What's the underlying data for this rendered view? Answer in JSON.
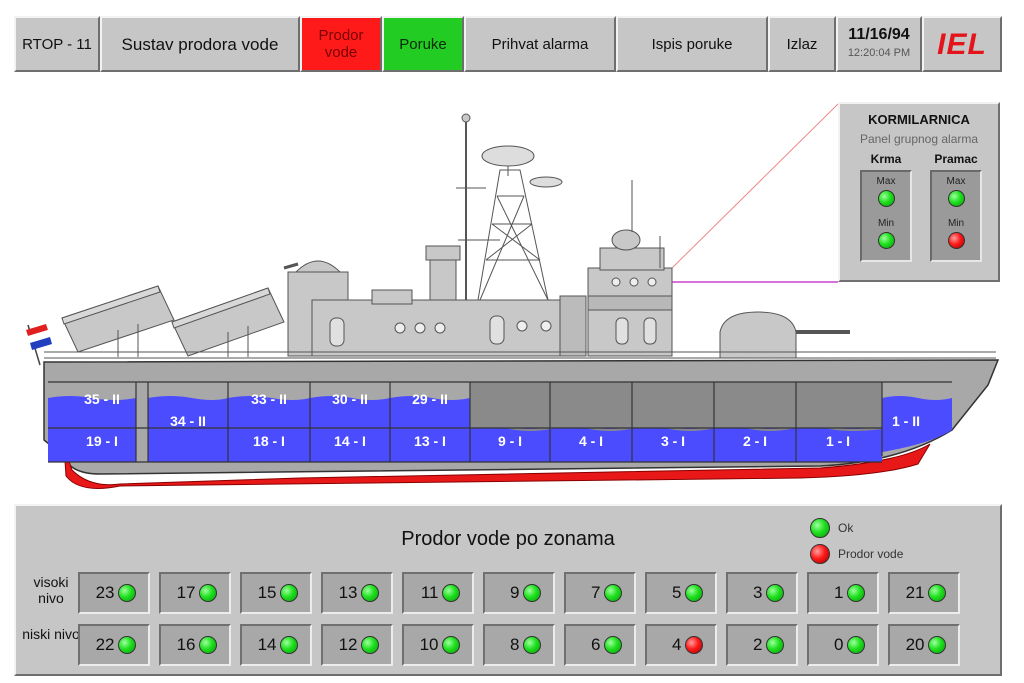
{
  "topbar": {
    "station": "RTOP - 11",
    "title": "Sustav prodora vode",
    "btn_prodor": "Prodor vode",
    "btn_poruke": "Poruke",
    "btn_prihvat": "Prihvat alarma",
    "btn_ispis": "Ispis poruke",
    "btn_izlaz": "Izlaz",
    "date": "11/16/94",
    "time": "12:20:04 PM",
    "logo": "IEL"
  },
  "colors": {
    "panel": "#c6c6c6",
    "hull_water": "#4c4cff",
    "alarm_red": "#ff1a1a",
    "ok_green": "#22cc22",
    "logo_red": "#e3151a"
  },
  "ship": {
    "compartments_upper": [
      "35 - II",
      "34 - II",
      "33 - II",
      "30 - II",
      "29 - II",
      "1 - II"
    ],
    "compartments_lower": [
      "19 - I",
      "18 - I",
      "14 - I",
      "13 - I",
      "9 - I",
      "4 - I",
      "3 - I",
      "2 - I",
      "1 - I"
    ]
  },
  "kormilarnica": {
    "title": "KORMILARNICA",
    "subtitle": "Panel grupnog alarma",
    "col_krma": "Krma",
    "col_pramac": "Pramac",
    "krma": [
      {
        "label": "Max",
        "state": "ok"
      },
      {
        "label": "Min",
        "state": "ok"
      }
    ],
    "pramac": [
      {
        "label": "Max",
        "state": "ok"
      },
      {
        "label": "Min",
        "state": "alarm"
      }
    ]
  },
  "zones_panel": {
    "title": "Prodor vode po zonama",
    "legend_ok": "Ok",
    "legend_alarm": "Prodor vode",
    "row_high_label": "visoki nivo",
    "row_low_label": "niski nivo",
    "high": [
      {
        "zone": "23",
        "state": "ok"
      },
      {
        "zone": "17",
        "state": "ok"
      },
      {
        "zone": "15",
        "state": "ok"
      },
      {
        "zone": "13",
        "state": "ok"
      },
      {
        "zone": "11",
        "state": "ok"
      },
      {
        "zone": "9",
        "state": "ok"
      },
      {
        "zone": "7",
        "state": "ok"
      },
      {
        "zone": "5",
        "state": "ok"
      },
      {
        "zone": "3",
        "state": "ok"
      },
      {
        "zone": "1",
        "state": "ok"
      },
      {
        "zone": "21",
        "state": "ok"
      }
    ],
    "low": [
      {
        "zone": "22",
        "state": "ok"
      },
      {
        "zone": "16",
        "state": "ok"
      },
      {
        "zone": "14",
        "state": "ok"
      },
      {
        "zone": "12",
        "state": "ok"
      },
      {
        "zone": "10",
        "state": "ok"
      },
      {
        "zone": "8",
        "state": "ok"
      },
      {
        "zone": "6",
        "state": "ok"
      },
      {
        "zone": "4",
        "state": "alarm"
      },
      {
        "zone": "2",
        "state": "ok"
      },
      {
        "zone": "0",
        "state": "ok"
      },
      {
        "zone": "20",
        "state": "ok"
      }
    ]
  }
}
